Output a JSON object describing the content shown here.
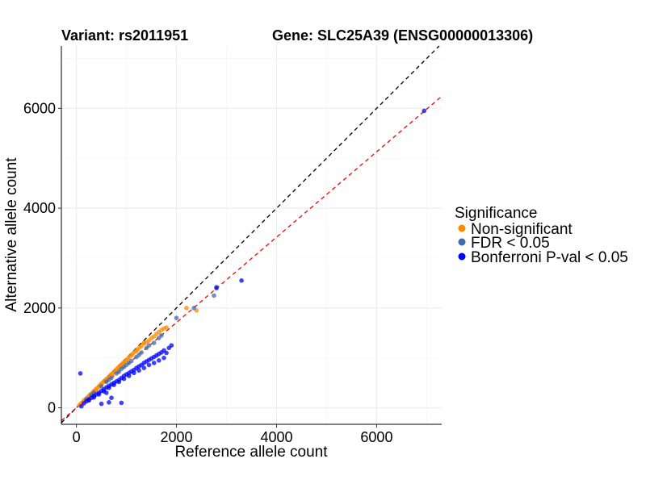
{
  "chart_data": {
    "type": "scatter",
    "title_left": "Variant: rs2011951",
    "title_right": "Gene: SLC25A39 (ENSG00000013306)",
    "xlabel": "Reference allele count",
    "ylabel": "Alternative allele count",
    "xlim": [
      -300,
      7300
    ],
    "ylim": [
      -330,
      7250
    ],
    "x_ticks": [
      0,
      2000,
      4000,
      6000
    ],
    "y_ticks": [
      0,
      2000,
      4000,
      6000
    ],
    "grid": true,
    "reference_lines": [
      {
        "name": "identity",
        "slope": 1.0,
        "intercept": 0,
        "color": "#000000",
        "dash": "dashed"
      },
      {
        "name": "fit",
        "slope": 0.855,
        "intercept": 0,
        "color": "#ff0000",
        "dash": "dashed"
      }
    ],
    "legend": {
      "title": "Significance",
      "placement": "right",
      "entries": [
        {
          "label": "Non-significant",
          "color": "#FF8C00"
        },
        {
          "label": "FDR < 0.05",
          "color": "#3D6BAF"
        },
        {
          "label": "Bonferroni P-val < 0.05",
          "color": "#0000FF"
        }
      ]
    },
    "series": [
      {
        "name": "Non-significant",
        "color": "#FF8C00",
        "points": [
          [
            60,
            55
          ],
          [
            90,
            85
          ],
          [
            120,
            110
          ],
          [
            150,
            145
          ],
          [
            180,
            170
          ],
          [
            210,
            200
          ],
          [
            240,
            230
          ],
          [
            270,
            260
          ],
          [
            300,
            285
          ],
          [
            330,
            320
          ],
          [
            360,
            345
          ],
          [
            390,
            375
          ],
          [
            420,
            400
          ],
          [
            450,
            430
          ],
          [
            480,
            465
          ],
          [
            510,
            495
          ],
          [
            540,
            520
          ],
          [
            570,
            550
          ],
          [
            600,
            580
          ],
          [
            630,
            600
          ],
          [
            660,
            630
          ],
          [
            690,
            665
          ],
          [
            720,
            690
          ],
          [
            750,
            720
          ],
          [
            780,
            750
          ],
          [
            810,
            780
          ],
          [
            840,
            810
          ],
          [
            870,
            835
          ],
          [
            900,
            870
          ],
          [
            930,
            895
          ],
          [
            960,
            925
          ],
          [
            990,
            950
          ],
          [
            1020,
            975
          ],
          [
            1050,
            1010
          ],
          [
            1080,
            1040
          ],
          [
            1110,
            1060
          ],
          [
            1140,
            1100
          ],
          [
            1180,
            1130
          ],
          [
            1220,
            1170
          ],
          [
            1260,
            1210
          ],
          [
            1300,
            1240
          ],
          [
            1350,
            1290
          ],
          [
            1400,
            1320
          ],
          [
            1450,
            1350
          ],
          [
            1500,
            1400
          ],
          [
            1550,
            1430
          ],
          [
            1600,
            1480
          ],
          [
            1650,
            1520
          ],
          [
            1700,
            1560
          ],
          [
            1750,
            1590
          ],
          [
            1800,
            1610
          ],
          [
            2200,
            2000
          ],
          [
            2400,
            1950
          ],
          [
            400,
            360
          ],
          [
            500,
            470
          ],
          [
            700,
            650
          ],
          [
            850,
            790
          ],
          [
            950,
            900
          ],
          [
            1200,
            1140
          ],
          [
            1350,
            1300
          ]
        ]
      },
      {
        "name": "FDR < 0.05",
        "color": "#3D6BAF",
        "points": [
          [
            200,
            170
          ],
          [
            300,
            260
          ],
          [
            350,
            300
          ],
          [
            500,
            430
          ],
          [
            600,
            520
          ],
          [
            650,
            560
          ],
          [
            700,
            600
          ],
          [
            800,
            690
          ],
          [
            850,
            720
          ],
          [
            900,
            780
          ],
          [
            950,
            820
          ],
          [
            1000,
            860
          ],
          [
            1050,
            900
          ],
          [
            1100,
            940
          ],
          [
            1200,
            1020
          ],
          [
            1250,
            1060
          ],
          [
            1300,
            1110
          ],
          [
            1400,
            1200
          ],
          [
            1450,
            1250
          ],
          [
            1550,
            1300
          ],
          [
            1650,
            1400
          ],
          [
            1700,
            1450
          ],
          [
            2000,
            1800
          ],
          [
            2350,
            2000
          ],
          [
            2750,
            2250
          ],
          [
            2800,
            2420
          ]
        ]
      },
      {
        "name": "Bonferroni P-val < 0.05",
        "color": "#0000FF",
        "points": [
          [
            80,
            690
          ],
          [
            100,
            30
          ],
          [
            150,
            90
          ],
          [
            200,
            130
          ],
          [
            250,
            170
          ],
          [
            300,
            200
          ],
          [
            350,
            240
          ],
          [
            400,
            270
          ],
          [
            450,
            300
          ],
          [
            500,
            340
          ],
          [
            550,
            370
          ],
          [
            600,
            410
          ],
          [
            650,
            440
          ],
          [
            700,
            470
          ],
          [
            750,
            500
          ],
          [
            800,
            530
          ],
          [
            850,
            560
          ],
          [
            900,
            600
          ],
          [
            950,
            640
          ],
          [
            1000,
            670
          ],
          [
            1050,
            700
          ],
          [
            1100,
            730
          ],
          [
            1150,
            760
          ],
          [
            1200,
            800
          ],
          [
            1250,
            830
          ],
          [
            1300,
            860
          ],
          [
            1350,
            900
          ],
          [
            1400,
            930
          ],
          [
            1450,
            960
          ],
          [
            1500,
            990
          ],
          [
            1550,
            1020
          ],
          [
            1600,
            1050
          ],
          [
            1650,
            1080
          ],
          [
            1700,
            1110
          ],
          [
            1750,
            1150
          ],
          [
            1800,
            1100
          ],
          [
            1850,
            1200
          ],
          [
            1900,
            1250
          ],
          [
            1750,
            1000
          ],
          [
            1650,
            950
          ],
          [
            1550,
            900
          ],
          [
            1450,
            860
          ],
          [
            1350,
            800
          ],
          [
            1250,
            750
          ],
          [
            1150,
            700
          ],
          [
            1050,
            640
          ],
          [
            950,
            580
          ],
          [
            850,
            520
          ],
          [
            750,
            460
          ],
          [
            650,
            400
          ],
          [
            550,
            330
          ],
          [
            450,
            270
          ],
          [
            350,
            210
          ],
          [
            250,
            150
          ],
          [
            600,
            300
          ],
          [
            700,
            200
          ],
          [
            900,
            100
          ],
          [
            650,
            110
          ],
          [
            500,
            80
          ],
          [
            2800,
            2400
          ],
          [
            3300,
            2550
          ],
          [
            6950,
            5950
          ]
        ]
      }
    ]
  }
}
